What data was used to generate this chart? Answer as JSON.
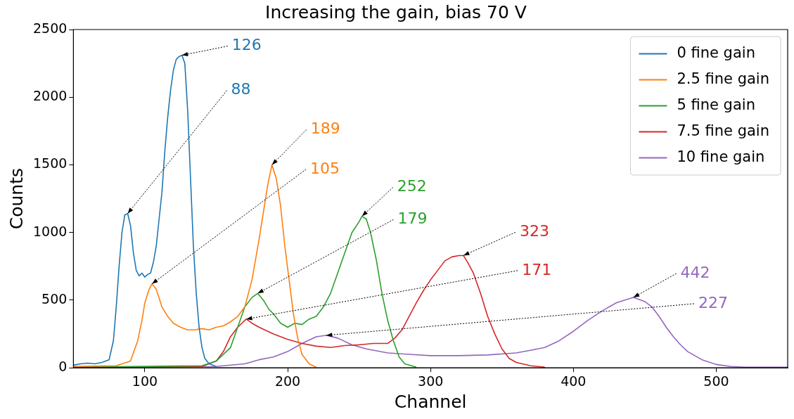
{
  "chart_data": {
    "type": "line",
    "title": "Increasing the gain, bias 70 V",
    "xlabel": "Channel",
    "ylabel": "Counts",
    "xlim": [
      50,
      550
    ],
    "xticks": [
      100,
      200,
      300,
      400,
      500
    ],
    "ylim": [
      0,
      2500
    ],
    "yticks": [
      0,
      500,
      1000,
      1500,
      2000,
      2500
    ],
    "grid": false,
    "legend": "top right",
    "marker": "none",
    "line_style": "solid",
    "series": [
      {
        "name": "0 fine gain",
        "color": "#1f77b4",
        "x": [
          50,
          55,
          60,
          65,
          70,
          75,
          78,
          80,
          82,
          84,
          86,
          88,
          90,
          92,
          94,
          96,
          98,
          100,
          102,
          104,
          106,
          108,
          110,
          112,
          114,
          116,
          118,
          120,
          122,
          124,
          126,
          128,
          130,
          132,
          134,
          136,
          138,
          140,
          142,
          145,
          150
        ],
        "values": [
          20,
          30,
          35,
          30,
          40,
          60,
          200,
          450,
          750,
          1000,
          1130,
          1140,
          1050,
          850,
          720,
          680,
          700,
          670,
          690,
          700,
          780,
          900,
          1100,
          1300,
          1600,
          1850,
          2050,
          2200,
          2280,
          2300,
          2310,
          2250,
          1900,
          1400,
          900,
          550,
          300,
          150,
          70,
          30,
          10
        ]
      },
      {
        "name": "2.5 fine gain",
        "color": "#ff7f0e",
        "x": [
          50,
          80,
          90,
          95,
          98,
          100,
          103,
          105,
          108,
          112,
          116,
          120,
          125,
          130,
          135,
          140,
          145,
          150,
          155,
          160,
          165,
          170,
          175,
          180,
          183,
          186,
          189,
          192,
          195,
          198,
          201,
          204,
          207,
          210,
          215,
          220
        ],
        "values": [
          10,
          15,
          50,
          200,
          350,
          480,
          580,
          620,
          580,
          450,
          380,
          330,
          300,
          280,
          280,
          290,
          280,
          300,
          310,
          340,
          380,
          450,
          650,
          950,
          1150,
          1350,
          1500,
          1400,
          1200,
          900,
          650,
          400,
          220,
          100,
          30,
          5
        ]
      },
      {
        "name": "5 fine gain",
        "color": "#2ca02c",
        "x": [
          50,
          140,
          150,
          160,
          165,
          170,
          175,
          179,
          183,
          187,
          190,
          195,
          200,
          205,
          210,
          215,
          220,
          225,
          230,
          235,
          240,
          245,
          250,
          252,
          255,
          258,
          262,
          266,
          270,
          274,
          278,
          282,
          290
        ],
        "values": [
          5,
          15,
          50,
          150,
          300,
          450,
          520,
          550,
          500,
          430,
          400,
          330,
          300,
          330,
          320,
          360,
          380,
          450,
          550,
          700,
          850,
          1000,
          1080,
          1120,
          1100,
          1000,
          800,
          550,
          350,
          200,
          80,
          30,
          5
        ]
      },
      {
        "name": "7.5 fine gain",
        "color": "#d62728",
        "x": [
          50,
          140,
          150,
          155,
          160,
          165,
          171,
          175,
          180,
          190,
          200,
          210,
          220,
          230,
          240,
          250,
          260,
          270,
          275,
          280,
          285,
          290,
          295,
          300,
          305,
          310,
          315,
          320,
          323,
          326,
          330,
          335,
          340,
          345,
          350,
          355,
          360,
          370,
          380
        ],
        "values": [
          5,
          10,
          50,
          120,
          230,
          300,
          360,
          330,
          300,
          250,
          210,
          180,
          160,
          150,
          165,
          170,
          180,
          180,
          220,
          280,
          380,
          480,
          570,
          650,
          720,
          790,
          820,
          830,
          830,
          780,
          700,
          550,
          380,
          250,
          140,
          70,
          40,
          15,
          5
        ]
      },
      {
        "name": "10 fine gain",
        "color": "#9467bd",
        "x": [
          50,
          150,
          170,
          180,
          190,
          200,
          210,
          220,
          227,
          235,
          245,
          255,
          270,
          285,
          300,
          320,
          340,
          360,
          370,
          380,
          390,
          400,
          410,
          420,
          430,
          442,
          450,
          455,
          460,
          465,
          470,
          475,
          480,
          490,
          500,
          510,
          520,
          550
        ],
        "values": [
          5,
          10,
          30,
          60,
          80,
          120,
          180,
          230,
          240,
          220,
          170,
          140,
          110,
          100,
          90,
          90,
          95,
          110,
          130,
          150,
          200,
          270,
          350,
          420,
          480,
          520,
          490,
          450,
          380,
          300,
          230,
          170,
          120,
          60,
          25,
          10,
          5,
          5
        ]
      }
    ],
    "annotations": [
      {
        "text": "126",
        "x": 126,
        "y": 2310
      },
      {
        "text": "88",
        "x": 88,
        "y": 1140
      },
      {
        "text": "189",
        "x": 189,
        "y": 1500
      },
      {
        "text": "105",
        "x": 105,
        "y": 620
      },
      {
        "text": "252",
        "x": 252,
        "y": 1120
      },
      {
        "text": "179",
        "x": 179,
        "y": 550
      },
      {
        "text": "323",
        "x": 323,
        "y": 830
      },
      {
        "text": "171",
        "x": 171,
        "y": 360
      },
      {
        "text": "442",
        "x": 442,
        "y": 520
      },
      {
        "text": "227",
        "x": 227,
        "y": 240
      }
    ]
  }
}
